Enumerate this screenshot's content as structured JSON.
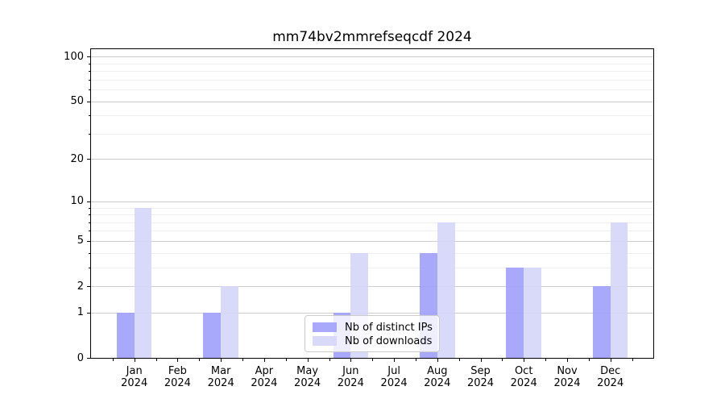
{
  "title": "mm74bv2mmrefseqcdf 2024",
  "chart_data": {
    "type": "bar",
    "title": "mm74bv2mmrefseqcdf 2024",
    "categories": [
      "Jan",
      "Feb",
      "Mar",
      "Apr",
      "May",
      "Jun",
      "Jul",
      "Aug",
      "Sep",
      "Oct",
      "Nov",
      "Dec"
    ],
    "year_label": "2024",
    "series": [
      {
        "name": "Nb of distinct IPs",
        "color": "rgba(160,160,252,0.9)",
        "values": [
          1,
          0,
          1,
          0,
          0,
          1,
          0,
          4,
          0,
          3,
          0,
          2
        ]
      },
      {
        "name": "Nb of downloads",
        "color": "rgba(213,213,250,0.9)",
        "values": [
          9,
          0,
          2,
          0,
          0,
          4,
          0,
          7,
          0,
          3,
          0,
          7
        ]
      }
    ],
    "xlabel": "",
    "ylabel": "",
    "y_scale": "log10(1+value)",
    "y_axis_top_value": 112,
    "y_ticks": [
      0,
      1,
      2,
      5,
      10,
      20,
      50,
      100
    ],
    "y_minor_ticks": [
      3,
      4,
      6,
      7,
      8,
      9,
      30,
      40,
      60,
      70,
      80,
      90
    ],
    "grid": true,
    "legend_position": "inside lower center"
  },
  "colors": {
    "background": "#ffffff",
    "spine": "#000000",
    "grid_major": "#cdcdcd",
    "grid_minor": "#efefef",
    "text": "#000000",
    "legend_border": "#cccccc",
    "legend_background": "rgba(255,255,255,0.8)"
  }
}
